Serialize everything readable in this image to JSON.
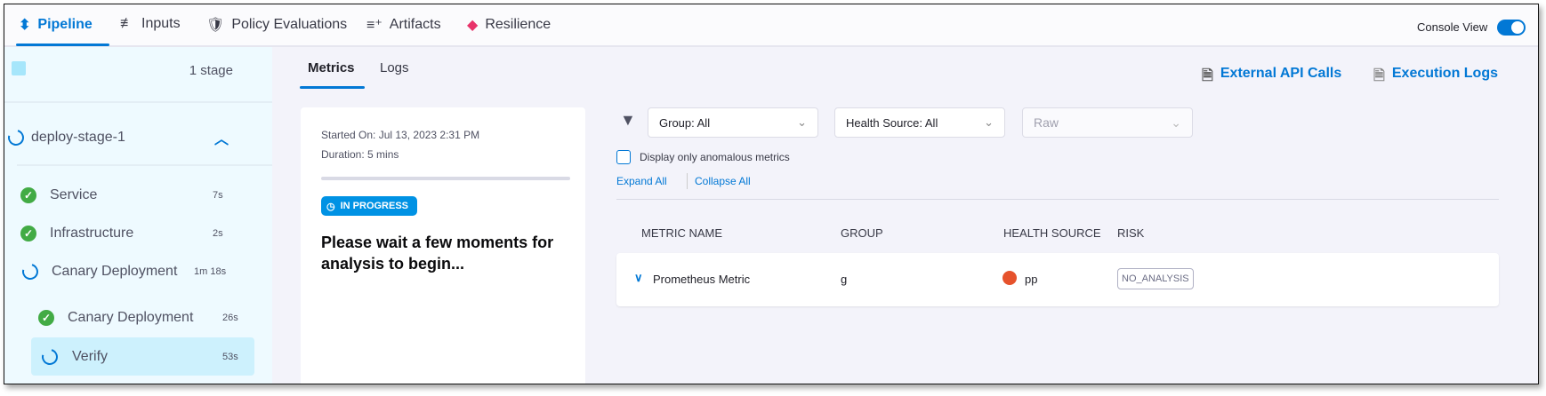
{
  "header": {
    "tabs": [
      {
        "label": "Pipeline",
        "icon": "pipeline-icon",
        "active": true
      },
      {
        "label": "Inputs",
        "icon": "inputs-icon"
      },
      {
        "label": "Policy Evaluations",
        "icon": "shield-check-icon"
      },
      {
        "label": "Artifacts",
        "icon": "artifacts-icon"
      },
      {
        "label": "Resilience",
        "icon": "resilience-icon"
      }
    ],
    "console_view": {
      "label": "Console View",
      "enabled": true
    }
  },
  "sidebar": {
    "stage_count": "1 stage",
    "stage": {
      "name": "deploy-stage-1",
      "status": "running"
    },
    "steps": [
      {
        "label": "Service",
        "duration": "7s",
        "status": "success"
      },
      {
        "label": "Infrastructure",
        "duration": "2s",
        "status": "success"
      },
      {
        "label": "Canary Deployment",
        "duration": "1m 18s",
        "status": "running"
      },
      {
        "label": "Canary Deployment",
        "duration": "26s",
        "status": "success"
      },
      {
        "label": "Verify",
        "duration": "53s",
        "status": "running",
        "selected": true
      }
    ]
  },
  "main": {
    "tabs": [
      {
        "label": "Metrics",
        "active": true
      },
      {
        "label": "Logs"
      }
    ],
    "external_api_calls": "External API Calls",
    "execution_logs": "Execution Logs",
    "summary": {
      "started_on": "Started On: Jul 13, 2023 2:31 PM",
      "duration": "Duration: 5 mins",
      "status": "IN PROGRESS",
      "message": "Please wait a few moments for analysis to begin..."
    },
    "filters": {
      "group": "Group: All",
      "health_source": "Health Source: All",
      "raw": "Raw",
      "anomalous_label": "Display only anomalous metrics",
      "anomalous_checked": false,
      "expand_all": "Expand All",
      "collapse_all": "Collapse All"
    },
    "table": {
      "headers": [
        "METRIC NAME",
        "GROUP",
        "HEALTH SOURCE",
        "RISK"
      ],
      "rows": [
        {
          "metric": "Prometheus Metric",
          "group": "g",
          "health_source": "pp",
          "health_source_icon": "prometheus-icon",
          "risk": "NO_ANALYSIS"
        }
      ]
    }
  },
  "colors": {
    "accent": "#0278d5",
    "success": "#42ab45",
    "prometheus": "#e6522c"
  }
}
